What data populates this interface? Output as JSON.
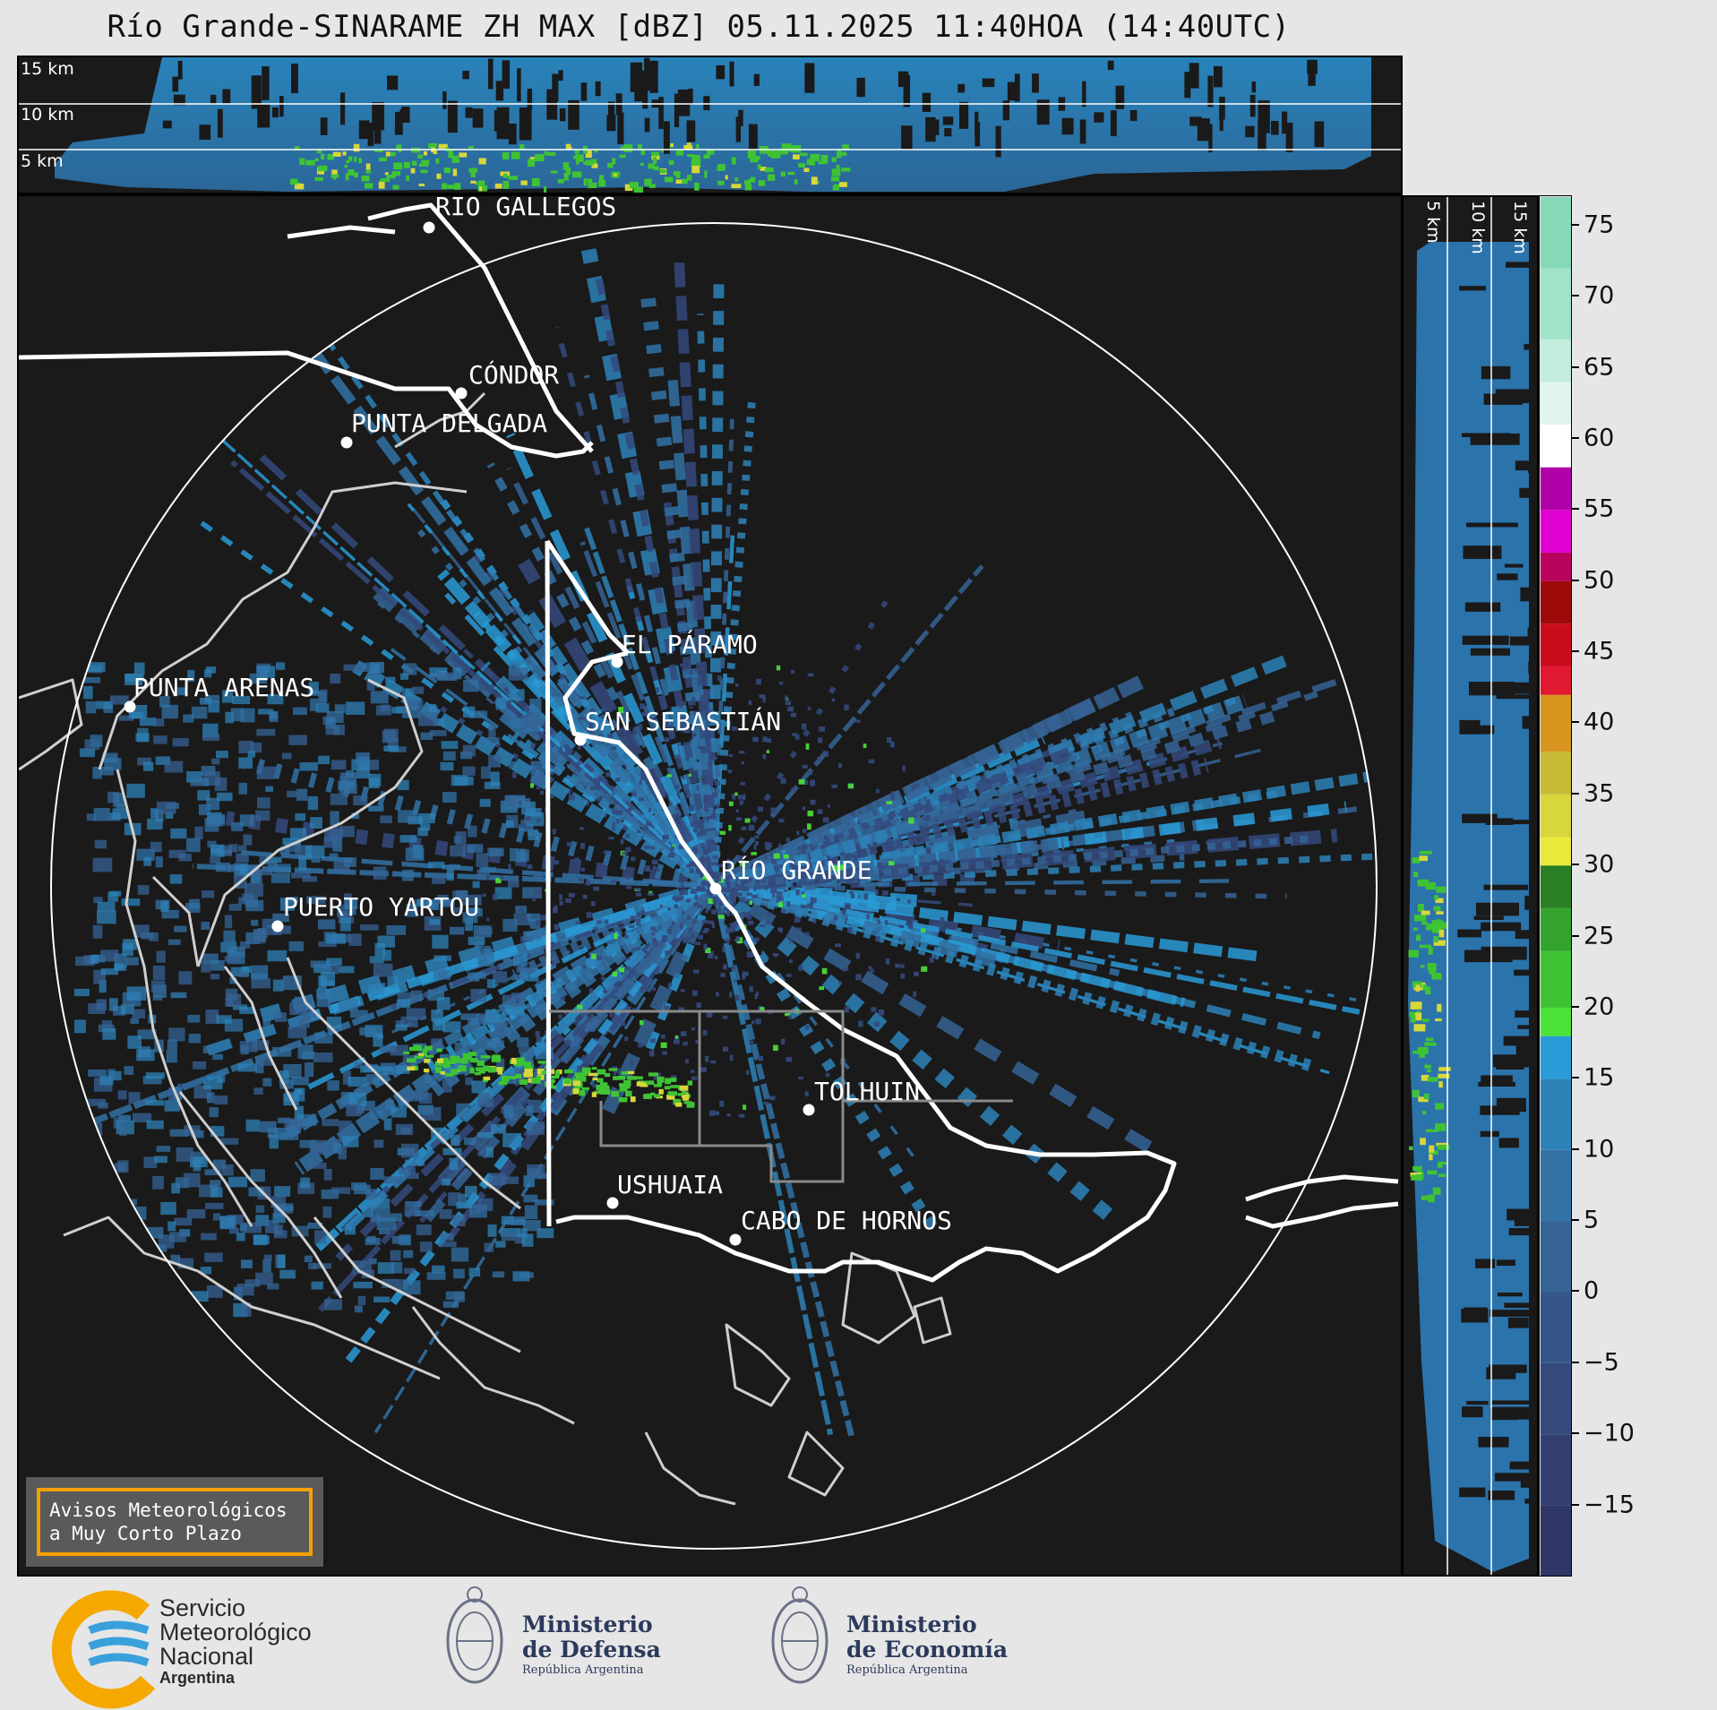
{
  "title": "Río Grande-SINARAME ZH MAX [dBZ] 05.11.2025 11:40HOA (14:40UTC)",
  "top_panel": {
    "height_labels": [
      "15 km",
      "10 km",
      "5 km"
    ]
  },
  "side_panel": {
    "height_labels": [
      "5 km",
      "10 km",
      "15 km"
    ]
  },
  "cities": [
    {
      "name": "RÍO GALLEGOS"
    },
    {
      "name": "CÓNDOR"
    },
    {
      "name": "PUNTA DELGADA"
    },
    {
      "name": "EL PÁRAMO"
    },
    {
      "name": "PUNTA ARENAS"
    },
    {
      "name": "SAN SEBASTIÁN"
    },
    {
      "name": "RÍO GRANDE"
    },
    {
      "name": "PUERTO YARTOU"
    },
    {
      "name": "TOLHUIN"
    },
    {
      "name": "USHUAIA"
    },
    {
      "name": "CABO DE HORNOS"
    }
  ],
  "notice": {
    "line1": "Avisos Meteorológicos",
    "line2": "a Muy Corto Plazo"
  },
  "colorbar": {
    "unit": "dBZ",
    "min": -20,
    "max": 77,
    "ticks": [
      "75",
      "70",
      "65",
      "60",
      "55",
      "50",
      "45",
      "40",
      "35",
      "30",
      "25",
      "20",
      "15",
      "10",
      "5",
      "0",
      "−5",
      "−10",
      "−15"
    ],
    "tick_values": [
      75,
      70,
      65,
      60,
      55,
      50,
      45,
      40,
      35,
      30,
      25,
      20,
      15,
      10,
      5,
      0,
      -5,
      -10,
      -15
    ],
    "bands": [
      {
        "from": -20,
        "to": -15,
        "color": "#2f3766"
      },
      {
        "from": -15,
        "to": -10,
        "color": "#323f70"
      },
      {
        "from": -10,
        "to": -5,
        "color": "#34497c"
      },
      {
        "from": -5,
        "to": 0,
        "color": "#355588"
      },
      {
        "from": 0,
        "to": 5,
        "color": "#356395"
      },
      {
        "from": 5,
        "to": 10,
        "color": "#3272a5"
      },
      {
        "from": 10,
        "to": 15,
        "color": "#2d82b8"
      },
      {
        "from": 15,
        "to": 18,
        "color": "#2a9bd6"
      },
      {
        "from": 18,
        "to": 20,
        "color": "#4be337"
      },
      {
        "from": 20,
        "to": 24,
        "color": "#3fc335"
      },
      {
        "from": 24,
        "to": 27,
        "color": "#34a32e"
      },
      {
        "from": 27,
        "to": 30,
        "color": "#2a7e25"
      },
      {
        "from": 30,
        "to": 32,
        "color": "#eaea3a"
      },
      {
        "from": 32,
        "to": 35,
        "color": "#d7d63a"
      },
      {
        "from": 35,
        "to": 38,
        "color": "#c7ba36"
      },
      {
        "from": 38,
        "to": 42,
        "color": "#d79520"
      },
      {
        "from": 42,
        "to": 44,
        "color": "#e01830"
      },
      {
        "from": 44,
        "to": 47,
        "color": "#c90c1c"
      },
      {
        "from": 47,
        "to": 50,
        "color": "#9e0a0a"
      },
      {
        "from": 50,
        "to": 52,
        "color": "#b8035f"
      },
      {
        "from": 52,
        "to": 55,
        "color": "#e000d0"
      },
      {
        "from": 55,
        "to": 58,
        "color": "#b000a8"
      },
      {
        "from": 58,
        "to": 61,
        "color": "#ffffff"
      },
      {
        "from": 61,
        "to": 64,
        "color": "#e0f5ee"
      },
      {
        "from": 64,
        "to": 67,
        "color": "#c2ecdc"
      },
      {
        "from": 67,
        "to": 72,
        "color": "#a2e2c9"
      },
      {
        "from": 72,
        "to": 77,
        "color": "#86d9b6"
      }
    ]
  },
  "logos": {
    "smn": {
      "line1": "Servicio",
      "line2": "Meteorológico",
      "line3": "Nacional",
      "line4": "Argentina"
    },
    "defensa": {
      "line1": "Ministerio",
      "line2": "de Defensa",
      "line3": "República Argentina"
    },
    "economia": {
      "line1": "Ministerio",
      "line2": "de Economía",
      "line3": "República Argentina"
    }
  },
  "colors": {
    "panel_bg": "#1a1a1a",
    "echo_weak": "#2d82b8",
    "echo_mid": "#4be337",
    "coast": "#cfcfcf",
    "border": "#ffffff"
  }
}
